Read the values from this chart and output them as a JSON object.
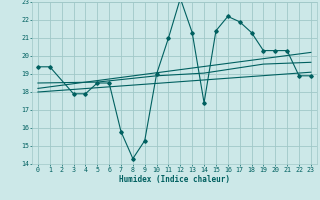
{
  "xlabel": "Humidex (Indice chaleur)",
  "bg_color": "#cce8e8",
  "grid_color": "#a0c8c8",
  "line_color": "#006060",
  "xlim": [
    -0.5,
    23.5
  ],
  "ylim": [
    14,
    23
  ],
  "xticks": [
    0,
    1,
    2,
    3,
    4,
    5,
    6,
    7,
    8,
    9,
    10,
    11,
    12,
    13,
    14,
    15,
    16,
    17,
    18,
    19,
    20,
    21,
    22,
    23
  ],
  "yticks": [
    14,
    15,
    16,
    17,
    18,
    19,
    20,
    21,
    22,
    23
  ],
  "series1_x": [
    0,
    1,
    3,
    4,
    5,
    6,
    7,
    8,
    9,
    10,
    11,
    12,
    13,
    14,
    15,
    16,
    17,
    18,
    19,
    20,
    21,
    22,
    23
  ],
  "series1_y": [
    19.4,
    19.4,
    17.9,
    17.9,
    18.5,
    18.5,
    15.8,
    14.3,
    15.3,
    19.0,
    21.0,
    23.2,
    21.3,
    17.4,
    21.4,
    22.2,
    21.9,
    21.3,
    20.3,
    20.3,
    20.3,
    18.9,
    18.9
  ],
  "trend1_x": [
    0,
    23
  ],
  "trend1_y": [
    18.2,
    20.2
  ],
  "trend2_x": [
    0,
    23
  ],
  "trend2_y": [
    18.0,
    19.1
  ],
  "smooth_x": [
    0,
    5,
    10,
    14,
    19,
    21,
    23
  ],
  "smooth_y": [
    18.5,
    18.55,
    18.9,
    19.05,
    19.55,
    19.6,
    19.65
  ]
}
